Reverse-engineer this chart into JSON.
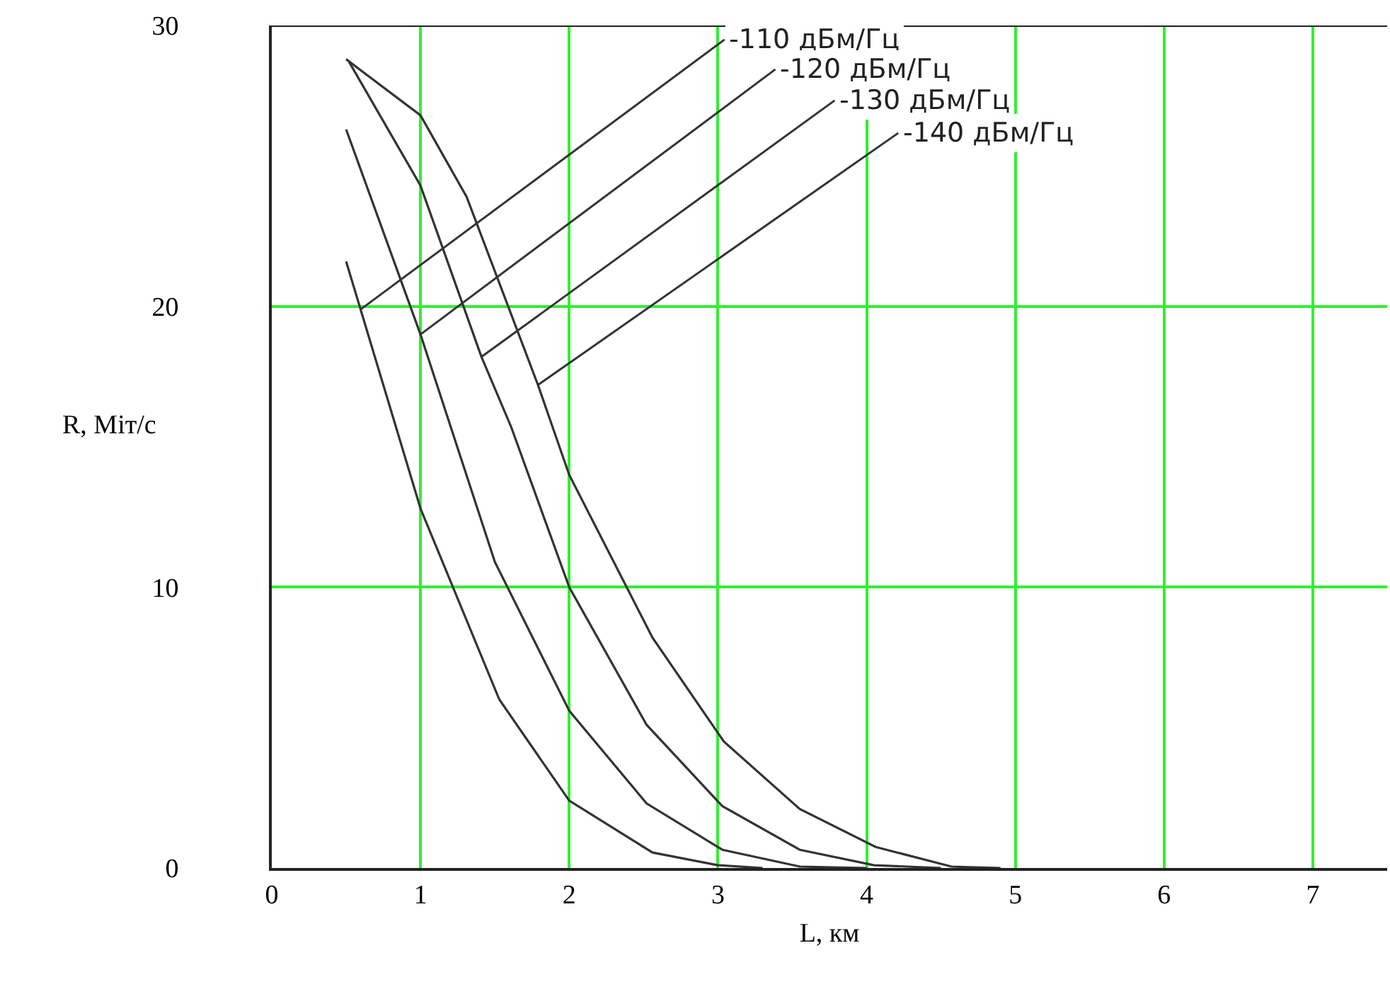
{
  "chart_data": {
    "type": "line",
    "xlabel": "L, км",
    "ylabel": "R, Міт/с",
    "xlim": [
      0,
      7.5
    ],
    "ylim": [
      0,
      30
    ],
    "xticks": [
      0,
      1,
      2,
      3,
      4,
      5,
      6,
      7
    ],
    "yticks": [
      0,
      10,
      20,
      30
    ],
    "grid": true,
    "marker": "none",
    "line_style": "solid",
    "series": [
      {
        "color": "#333333",
        "x": [
          0.5,
          1.0,
          1.53,
          2.0,
          2.56,
          3.0,
          3.3
        ],
        "values": [
          21.6,
          12.8,
          6.0,
          2.4,
          0.55,
          0.1,
          0
        ]
      },
      {
        "color": "#333333",
        "x": [
          0.5,
          1.0,
          1.5,
          2.0,
          2.52,
          3.03,
          3.55,
          4.0
        ],
        "values": [
          26.3,
          19.0,
          10.9,
          5.6,
          2.3,
          0.65,
          0.05,
          0
        ]
      },
      {
        "color": "#333333",
        "x": [
          0.52,
          1.0,
          1.41,
          1.61,
          2.0,
          2.52,
          3.03,
          3.55,
          4.05,
          4.5
        ],
        "values": [
          28.7,
          24.3,
          18.2,
          15.7,
          10,
          5.1,
          2.2,
          0.65,
          0.1,
          0
        ]
      },
      {
        "color": "#333333",
        "x": [
          0.5,
          1.0,
          1.31,
          1.79,
          2.0,
          2.56,
          3.04,
          3.55,
          4.06,
          4.57,
          4.9
        ],
        "values": [
          28.8,
          26.8,
          23.9,
          17.2,
          14,
          8.2,
          4.5,
          2.1,
          0.75,
          0.05,
          0
        ]
      }
    ],
    "annotations": [
      {
        "text": "-110 дБм/Гц",
        "x": 0.6,
        "y": 19.9
      },
      {
        "text": "-120 дБм/Гц",
        "x": 1.0,
        "y": 19.0
      },
      {
        "text": "-130 дБм/Гц",
        "x": 1.41,
        "y": 18.2
      },
      {
        "text": "-140 дБм/Гц",
        "x": 1.79,
        "y": 17.2
      }
    ]
  }
}
